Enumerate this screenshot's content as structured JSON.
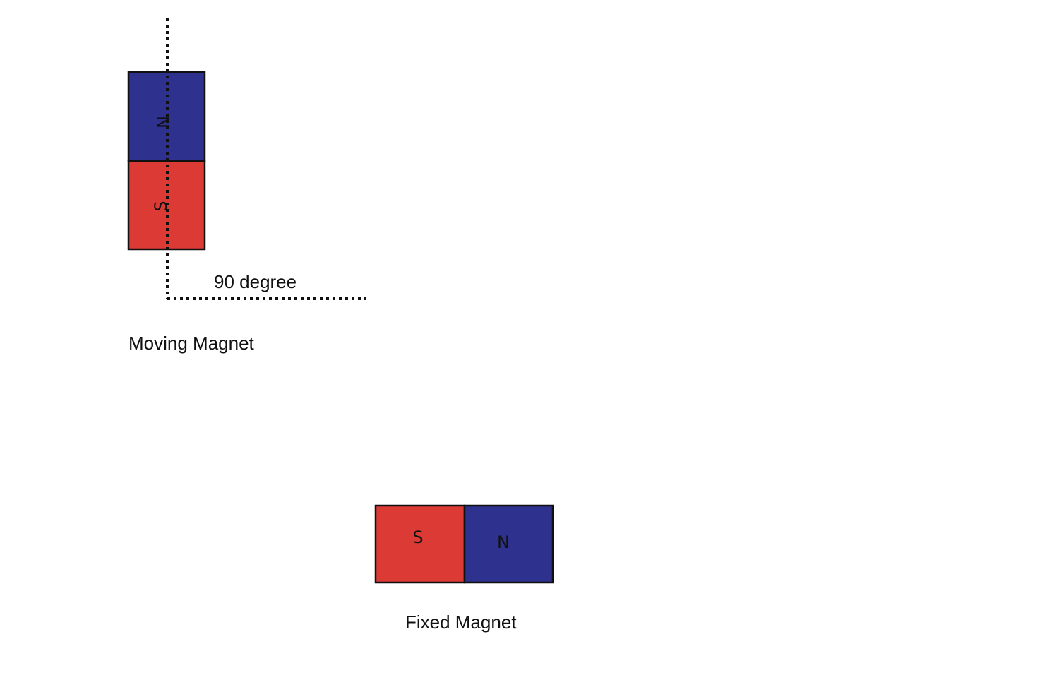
{
  "colors": {
    "south_pole": "#dc3a35",
    "north_pole": "#2e318d",
    "outline": "#111111",
    "background": "#ffffff"
  },
  "moving_magnet": {
    "label": "Moving Magnet",
    "north_label": "N",
    "south_label": "S"
  },
  "angle": {
    "label": "90 degree",
    "line_style": "dotted"
  },
  "fixed_magnet": {
    "label": "Fixed Magnet",
    "south_label": "S",
    "north_label": "N"
  }
}
